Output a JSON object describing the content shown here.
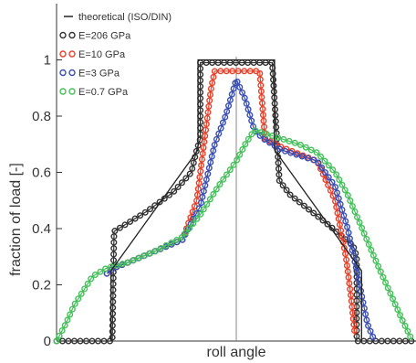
{
  "chart_data": {
    "type": "line",
    "xlabel": "roll angle",
    "ylabel": "fraction of load [-]",
    "ylim": [
      0,
      1.2
    ],
    "xlim": [
      -1,
      1
    ],
    "yticks": [
      "0",
      "0.2",
      "0.4",
      "0.6",
      "0.8",
      "1"
    ],
    "ytick_values": [
      0,
      0.2,
      0.4,
      0.6,
      0.8,
      1
    ],
    "x_tick_labels_shown": false,
    "center_line_x": 0,
    "legend_placement": "top-left",
    "theoretical": {
      "name": "theoretical (ISO/DIN)",
      "color": "#222222",
      "x": [
        -0.697,
        -0.697,
        -0.213,
        -0.213,
        0.213,
        0.213,
        0.697,
        0.697
      ],
      "y": [
        0,
        0.25,
        0.68,
        1.0,
        1.0,
        0.68,
        0.25,
        0
      ]
    },
    "series": [
      {
        "name": "E=206 GPa",
        "color": "#333333",
        "x": [
          -1.0,
          -0.75,
          -0.69,
          -0.68,
          -0.5,
          -0.35,
          -0.25,
          -0.22,
          -0.2,
          -0.2,
          0.2,
          0.24,
          0.3,
          0.5,
          0.65,
          0.67,
          0.67,
          1.0
        ],
        "y": [
          0,
          0,
          0.0,
          0.39,
          0.46,
          0.53,
          0.6,
          0.68,
          0.72,
          0.99,
          0.99,
          0.57,
          0.52,
          0.42,
          0.34,
          0.3,
          0.0,
          0
        ]
      },
      {
        "name": "E=10 GPa",
        "color": "#e8412a",
        "x": [
          -0.72,
          -0.68,
          -0.6,
          -0.45,
          -0.3,
          -0.22,
          -0.17,
          -0.14,
          -0.12,
          0.13,
          0.16,
          0.25,
          0.45,
          0.55,
          0.61,
          0.64,
          0.66
        ],
        "y": [
          0.24,
          0.26,
          0.28,
          0.32,
          0.36,
          0.5,
          0.75,
          0.9,
          0.96,
          0.96,
          0.72,
          0.69,
          0.64,
          0.5,
          0.3,
          0.15,
          0.02
        ]
      },
      {
        "name": "E=3 GPa",
        "color": "#3a4fb5",
        "x": [
          -0.72,
          -0.68,
          -0.6,
          -0.45,
          -0.3,
          -0.2,
          -0.12,
          -0.06,
          0.0,
          0.05,
          0.1,
          0.15,
          0.25,
          0.45,
          0.55,
          0.62,
          0.68,
          0.73,
          0.77
        ],
        "y": [
          0.24,
          0.26,
          0.28,
          0.32,
          0.36,
          0.48,
          0.7,
          0.8,
          0.93,
          0.86,
          0.75,
          0.72,
          0.68,
          0.64,
          0.55,
          0.4,
          0.22,
          0.06,
          0.0
        ]
      },
      {
        "name": "E=0.7 GPa",
        "color": "#44c05a",
        "x": [
          -1.0,
          -0.95,
          -0.9,
          -0.8,
          -0.72,
          -0.6,
          -0.45,
          -0.3,
          -0.2,
          -0.1,
          0.0,
          0.05,
          0.1,
          0.2,
          0.35,
          0.45,
          0.55,
          0.62,
          0.7,
          0.78,
          0.85,
          0.92,
          0.98
        ],
        "y": [
          0.0,
          0.06,
          0.13,
          0.23,
          0.26,
          0.28,
          0.32,
          0.37,
          0.45,
          0.55,
          0.64,
          0.7,
          0.75,
          0.73,
          0.7,
          0.67,
          0.6,
          0.52,
          0.4,
          0.28,
          0.18,
          0.08,
          0.0
        ]
      }
    ]
  }
}
